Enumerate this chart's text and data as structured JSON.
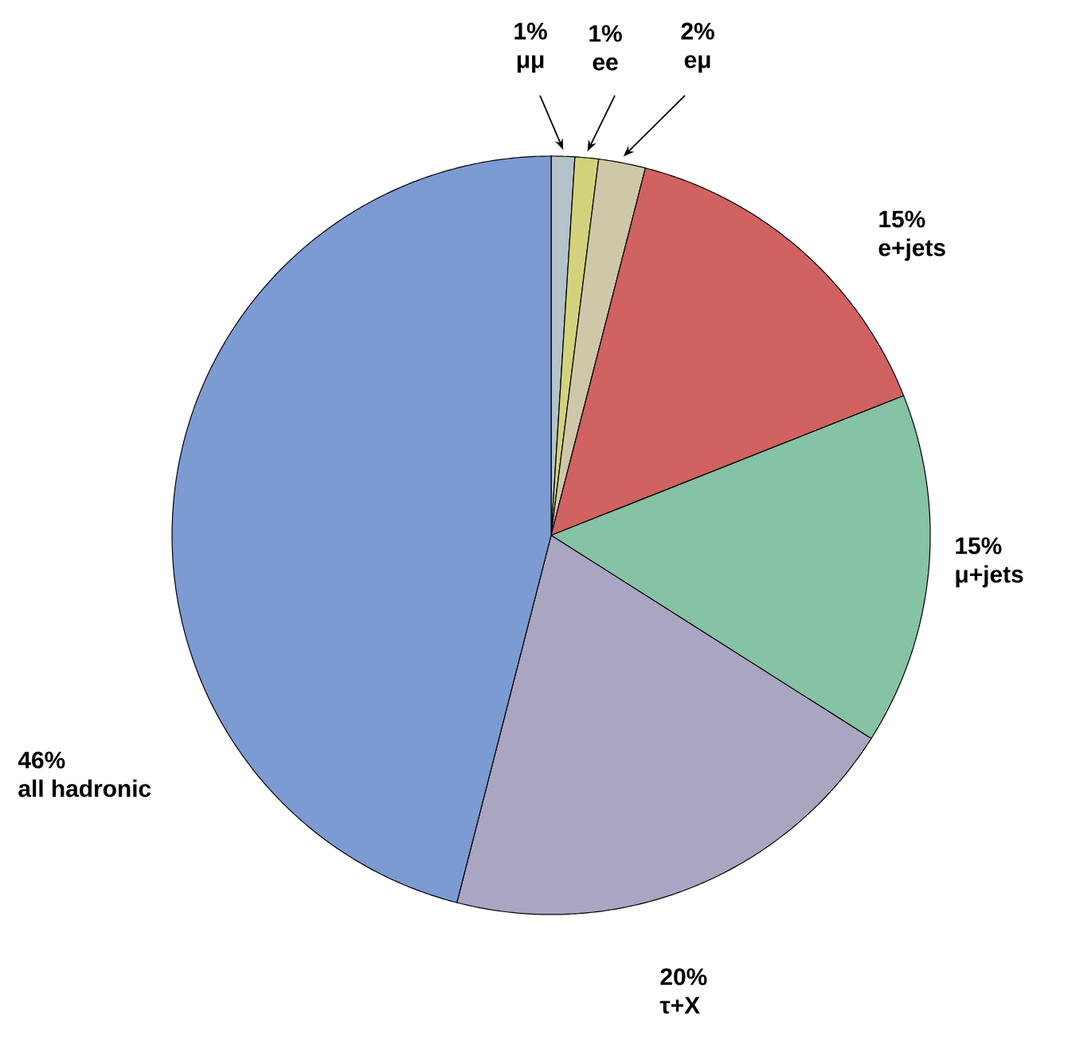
{
  "chart_data": {
    "type": "pie",
    "categories": [
      "μμ",
      "ee",
      "eμ",
      "e+jets",
      "μ+jets",
      "τ+X",
      "all hadronic"
    ],
    "values": [
      1,
      1,
      2,
      15,
      15,
      20,
      46
    ],
    "value_labels": [
      "1%",
      "1%",
      "2%",
      "15%",
      "15%",
      "20%",
      "46%"
    ],
    "colors": [
      "#b3c3c9",
      "#d3d27c",
      "#cfc8a8",
      "#d06262",
      "#85c3a4",
      "#aaa6c1",
      "#7d9bd3"
    ]
  }
}
